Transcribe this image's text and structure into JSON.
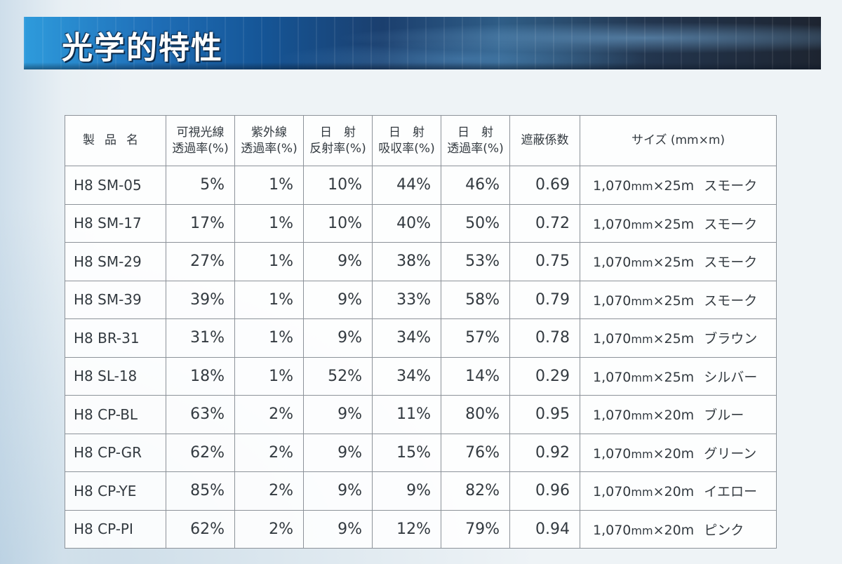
{
  "header": {
    "title": "光学的特性"
  },
  "table": {
    "columns": [
      {
        "line1": "製品名",
        "line2": ""
      },
      {
        "line1": "可視光線",
        "line2": "透過率(%)"
      },
      {
        "line1": "紫外線",
        "line2": "透過率(%)"
      },
      {
        "line1": "日　射",
        "line2": "反射率(%)"
      },
      {
        "line1": "日　射",
        "line2": "吸収率(%)"
      },
      {
        "line1": "日　射",
        "line2": "透過率(%)"
      },
      {
        "line1": "遮蔽係数",
        "line2": ""
      },
      {
        "line1": "サイズ (mm×m)",
        "line2": ""
      }
    ],
    "rows": [
      {
        "product": "H8 SM-05",
        "visible": "5%",
        "uv": "1%",
        "reflect": "10%",
        "absorb": "44%",
        "transmit": "46%",
        "shading": "0.69",
        "size_num": "1,070",
        "size_unit": "mm",
        "size_len": "×25m",
        "color": "スモーク"
      },
      {
        "product": "H8 SM-17",
        "visible": "17%",
        "uv": "1%",
        "reflect": "10%",
        "absorb": "40%",
        "transmit": "50%",
        "shading": "0.72",
        "size_num": "1,070",
        "size_unit": "mm",
        "size_len": "×25m",
        "color": "スモーク"
      },
      {
        "product": "H8 SM-29",
        "visible": "27%",
        "uv": "1%",
        "reflect": "9%",
        "absorb": "38%",
        "transmit": "53%",
        "shading": "0.75",
        "size_num": "1,070",
        "size_unit": "mm",
        "size_len": "×25m",
        "color": "スモーク"
      },
      {
        "product": "H8 SM-39",
        "visible": "39%",
        "uv": "1%",
        "reflect": "9%",
        "absorb": "33%",
        "transmit": "58%",
        "shading": "0.79",
        "size_num": "1,070",
        "size_unit": "mm",
        "size_len": "×25m",
        "color": "スモーク"
      },
      {
        "product": "H8 BR-31",
        "visible": "31%",
        "uv": "1%",
        "reflect": "9%",
        "absorb": "34%",
        "transmit": "57%",
        "shading": "0.78",
        "size_num": "1,070",
        "size_unit": "mm",
        "size_len": "×25m",
        "color": "ブラウン"
      },
      {
        "product": "H8 SL-18",
        "visible": "18%",
        "uv": "1%",
        "reflect": "52%",
        "absorb": "34%",
        "transmit": "14%",
        "shading": "0.29",
        "size_num": "1,070",
        "size_unit": "mm",
        "size_len": "×25m",
        "color": "シルバー"
      },
      {
        "product": "H8 CP-BL",
        "visible": "63%",
        "uv": "2%",
        "reflect": "9%",
        "absorb": "11%",
        "transmit": "80%",
        "shading": "0.95",
        "size_num": "1,070",
        "size_unit": "mm",
        "size_len": "×20m",
        "color": "ブルー"
      },
      {
        "product": "H8 CP-GR",
        "visible": "62%",
        "uv": "2%",
        "reflect": "9%",
        "absorb": "15%",
        "transmit": "76%",
        "shading": "0.92",
        "size_num": "1,070",
        "size_unit": "mm",
        "size_len": "×20m",
        "color": "グリーン"
      },
      {
        "product": "H8 CP-YE",
        "visible": "85%",
        "uv": "2%",
        "reflect": "9%",
        "absorb": "9%",
        "transmit": "82%",
        "shading": "0.96",
        "size_num": "1,070",
        "size_unit": "mm",
        "size_len": "×20m",
        "color": "イエロー"
      },
      {
        "product": "H8 CP-PI",
        "visible": "62%",
        "uv": "2%",
        "reflect": "9%",
        "absorb": "12%",
        "transmit": "79%",
        "shading": "0.94",
        "size_num": "1,070",
        "size_unit": "mm",
        "size_len": "×20m",
        "color": "ピンク"
      }
    ]
  }
}
